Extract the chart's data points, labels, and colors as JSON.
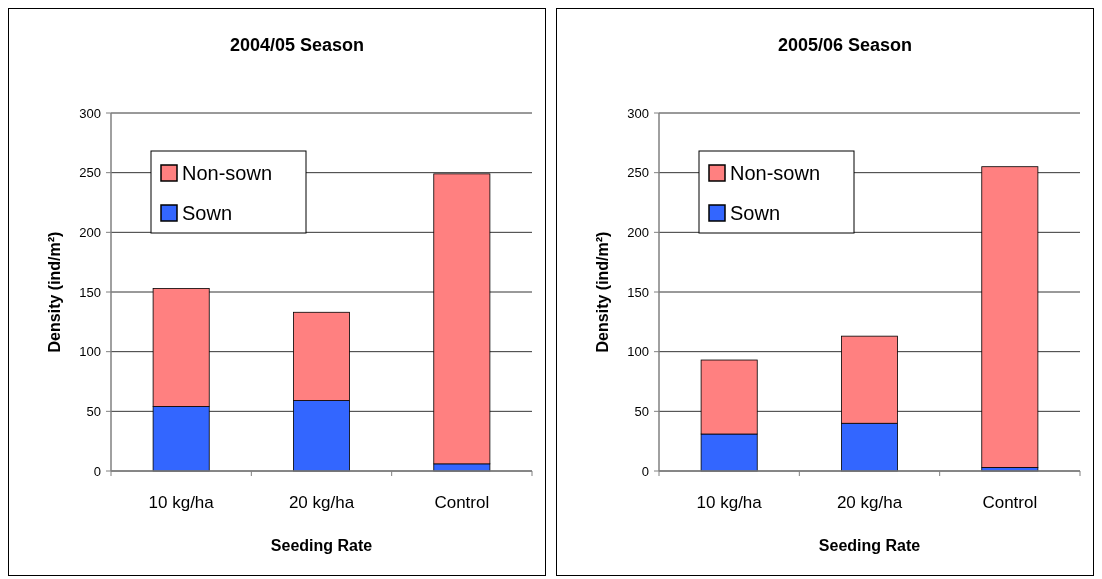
{
  "chart_data": [
    {
      "type": "bar",
      "title": "2004/05 Season",
      "xlabel": "Seeding Rate",
      "ylabel": "Density (ind/m²)",
      "categories": [
        "10 kg/ha",
        "20 kg/ha",
        "Control"
      ],
      "stacked": true,
      "series": [
        {
          "name": "Sown",
          "color": "#3366ff",
          "values": [
            54,
            59,
            6
          ]
        },
        {
          "name": "Non-sown",
          "color": "#ff8080",
          "values": [
            99,
            74,
            243
          ]
        }
      ],
      "ylim": [
        0,
        300
      ],
      "yticks": [
        0,
        50,
        100,
        150,
        200,
        250,
        300
      ],
      "grid": "y",
      "legend": "top left"
    },
    {
      "type": "bar",
      "title": "2005/06 Season",
      "xlabel": "Seeding Rate",
      "ylabel": "Density (ind/m²)",
      "categories": [
        "10 kg/ha",
        "20 kg/ha",
        "Control"
      ],
      "stacked": true,
      "series": [
        {
          "name": "Sown",
          "color": "#3366ff",
          "values": [
            31,
            40,
            3
          ]
        },
        {
          "name": "Non-sown",
          "color": "#ff8080",
          "values": [
            62,
            73,
            252
          ]
        }
      ],
      "ylim": [
        0,
        300
      ],
      "yticks": [
        0,
        50,
        100,
        150,
        200,
        250,
        300
      ],
      "grid": "y",
      "legend": "top left"
    }
  ]
}
